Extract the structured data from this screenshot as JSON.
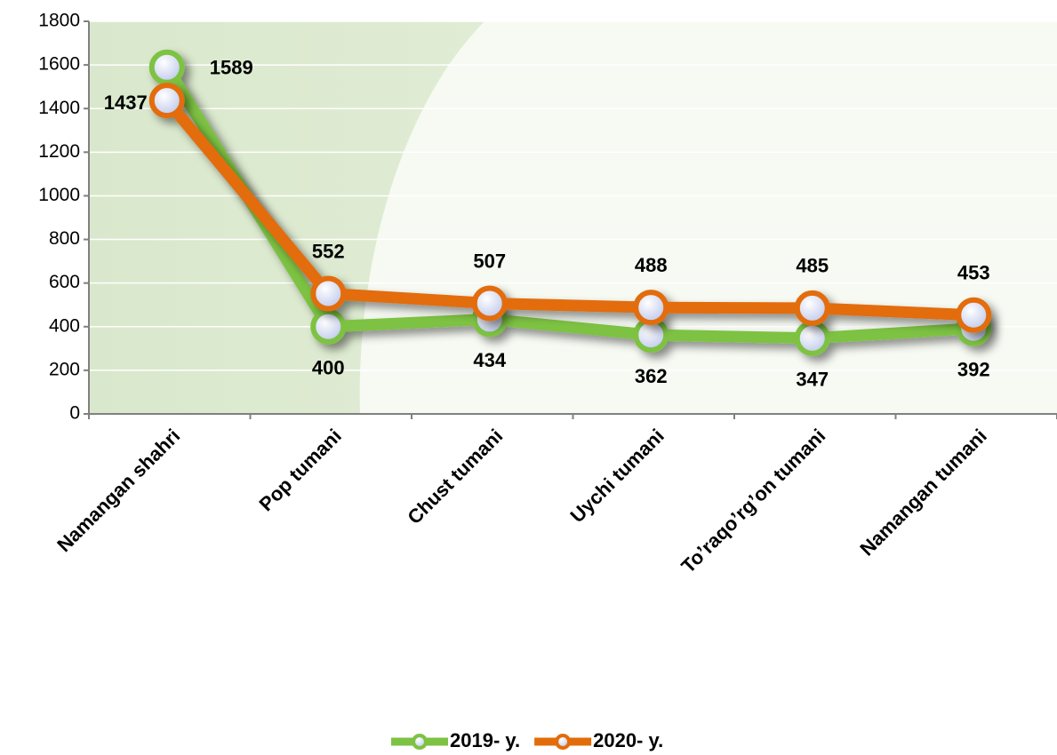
{
  "chart_data": {
    "type": "line",
    "categories": [
      "Namangan shahri",
      "Pop tumani",
      "Chust tumani",
      "Uychi tumani",
      "To’raqo’rg’on tumani",
      "Namangan tumani"
    ],
    "series": [
      {
        "name": "2019- y.",
        "color": "#7dc242",
        "values": [
          1589,
          400,
          434,
          362,
          347,
          392
        ]
      },
      {
        "name": "2020- y.",
        "color": "#e36c0a",
        "values": [
          1437,
          552,
          507,
          488,
          485,
          453
        ]
      }
    ],
    "ylim": [
      0,
      1800
    ],
    "yticks": [
      0,
      200,
      400,
      600,
      800,
      1000,
      1200,
      1400,
      1600,
      1800
    ],
    "grid": true,
    "legend": "bottom"
  }
}
